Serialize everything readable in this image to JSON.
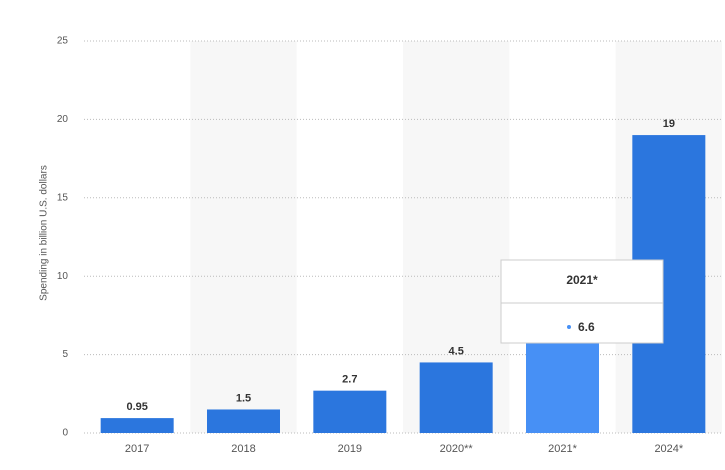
{
  "chart_data": {
    "type": "bar",
    "y_label": "Spending in billion U.S. dollars",
    "categories": [
      "2017",
      "2018",
      "2019",
      "2020**",
      "2021*",
      "2024*"
    ],
    "values": [
      0.95,
      1.5,
      2.7,
      4.5,
      6.6,
      19
    ],
    "color": "#2b76de",
    "highlight_color": "#4790f5",
    "band_color": "#f7f7f7",
    "ylim": [
      0,
      25
    ],
    "yticks": [
      0,
      5,
      10,
      15,
      20,
      25
    ],
    "grid": true,
    "alternate_bands": true,
    "tooltip": {
      "category": "2021*",
      "value": 6.6
    }
  }
}
